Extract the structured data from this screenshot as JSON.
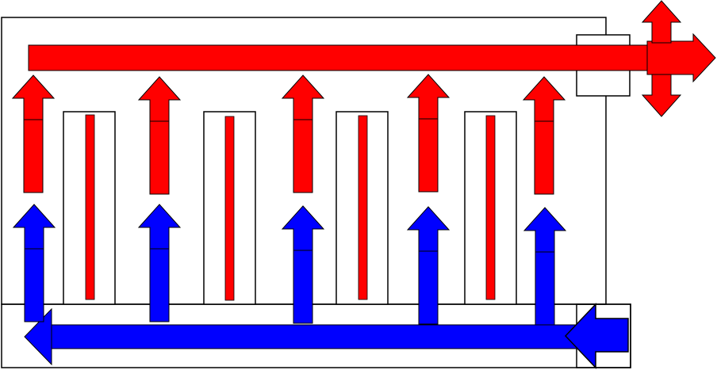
{
  "diagram": {
    "type": "flow-diagram",
    "text": [],
    "colors": {
      "hot_flow": "#ff0000",
      "cold_flow": "#0000ff",
      "outline": "#000000",
      "panel_fill": "#ffffff",
      "heating_element": "#ff0000"
    },
    "flows": {
      "supply": "hot_flow",
      "return": "cold_flow"
    },
    "counts": {
      "vertical_columns": 5,
      "heating_elements": 4
    }
  }
}
